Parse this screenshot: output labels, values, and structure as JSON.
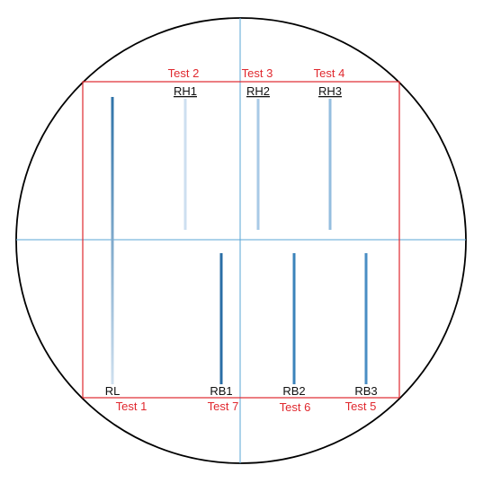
{
  "colors": {
    "circle": "#000000",
    "crosshair": "#5aa6d6",
    "frame": "#e0282e",
    "test_label": "#e0282e",
    "specimen_label": "#111111"
  },
  "test_labels": {
    "t1": "Test 1",
    "t2": "Test 2",
    "t3": "Test 3",
    "t4": "Test 4",
    "t5": "Test 5",
    "t6": "Test 6",
    "t7": "Test 7"
  },
  "specimens": {
    "rh1": {
      "label": "RH1",
      "color": "#cddff0"
    },
    "rh2": {
      "label": "RH2",
      "color": "#a8cae6"
    },
    "rh3": {
      "label": "RH3",
      "color": "#94bedf"
    },
    "rl": {
      "label": "RL",
      "color": "#2f73a8",
      "fade_color": "#cfe0ef"
    },
    "rb1": {
      "label": "RB1",
      "color": "#2a6ea6"
    },
    "rb2": {
      "label": "RB2",
      "color": "#3b83bb"
    },
    "rb3": {
      "label": "RB3",
      "color": "#4a8ec4"
    }
  }
}
